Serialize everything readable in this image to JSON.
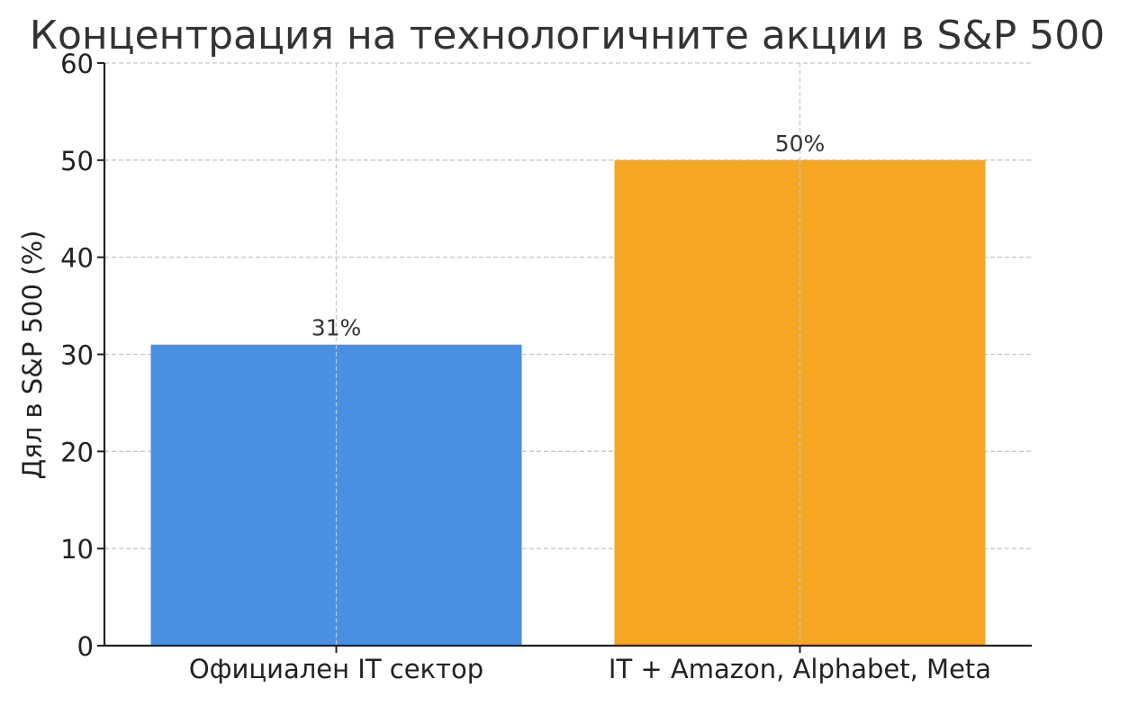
{
  "chart_data": {
    "type": "bar",
    "title": "Концентрация на технологичните акции в S&P 500",
    "xlabel": "",
    "ylabel": "Дял в S&P 500 (%)",
    "categories": [
      "Официален IT сектор",
      "IT + Amazon, Alphabet, Meta"
    ],
    "values": [
      31,
      50
    ],
    "value_labels": [
      "31%",
      "50%"
    ],
    "bar_colors": [
      "#4A90E2",
      "#F5A623"
    ],
    "ylim": [
      0,
      60
    ],
    "yticks": [
      0,
      10,
      20,
      30,
      40,
      50,
      60
    ],
    "ytick_labels": [
      "0",
      "10",
      "20",
      "30",
      "40",
      "50",
      "60"
    ],
    "grid": true,
    "legend": "none"
  }
}
